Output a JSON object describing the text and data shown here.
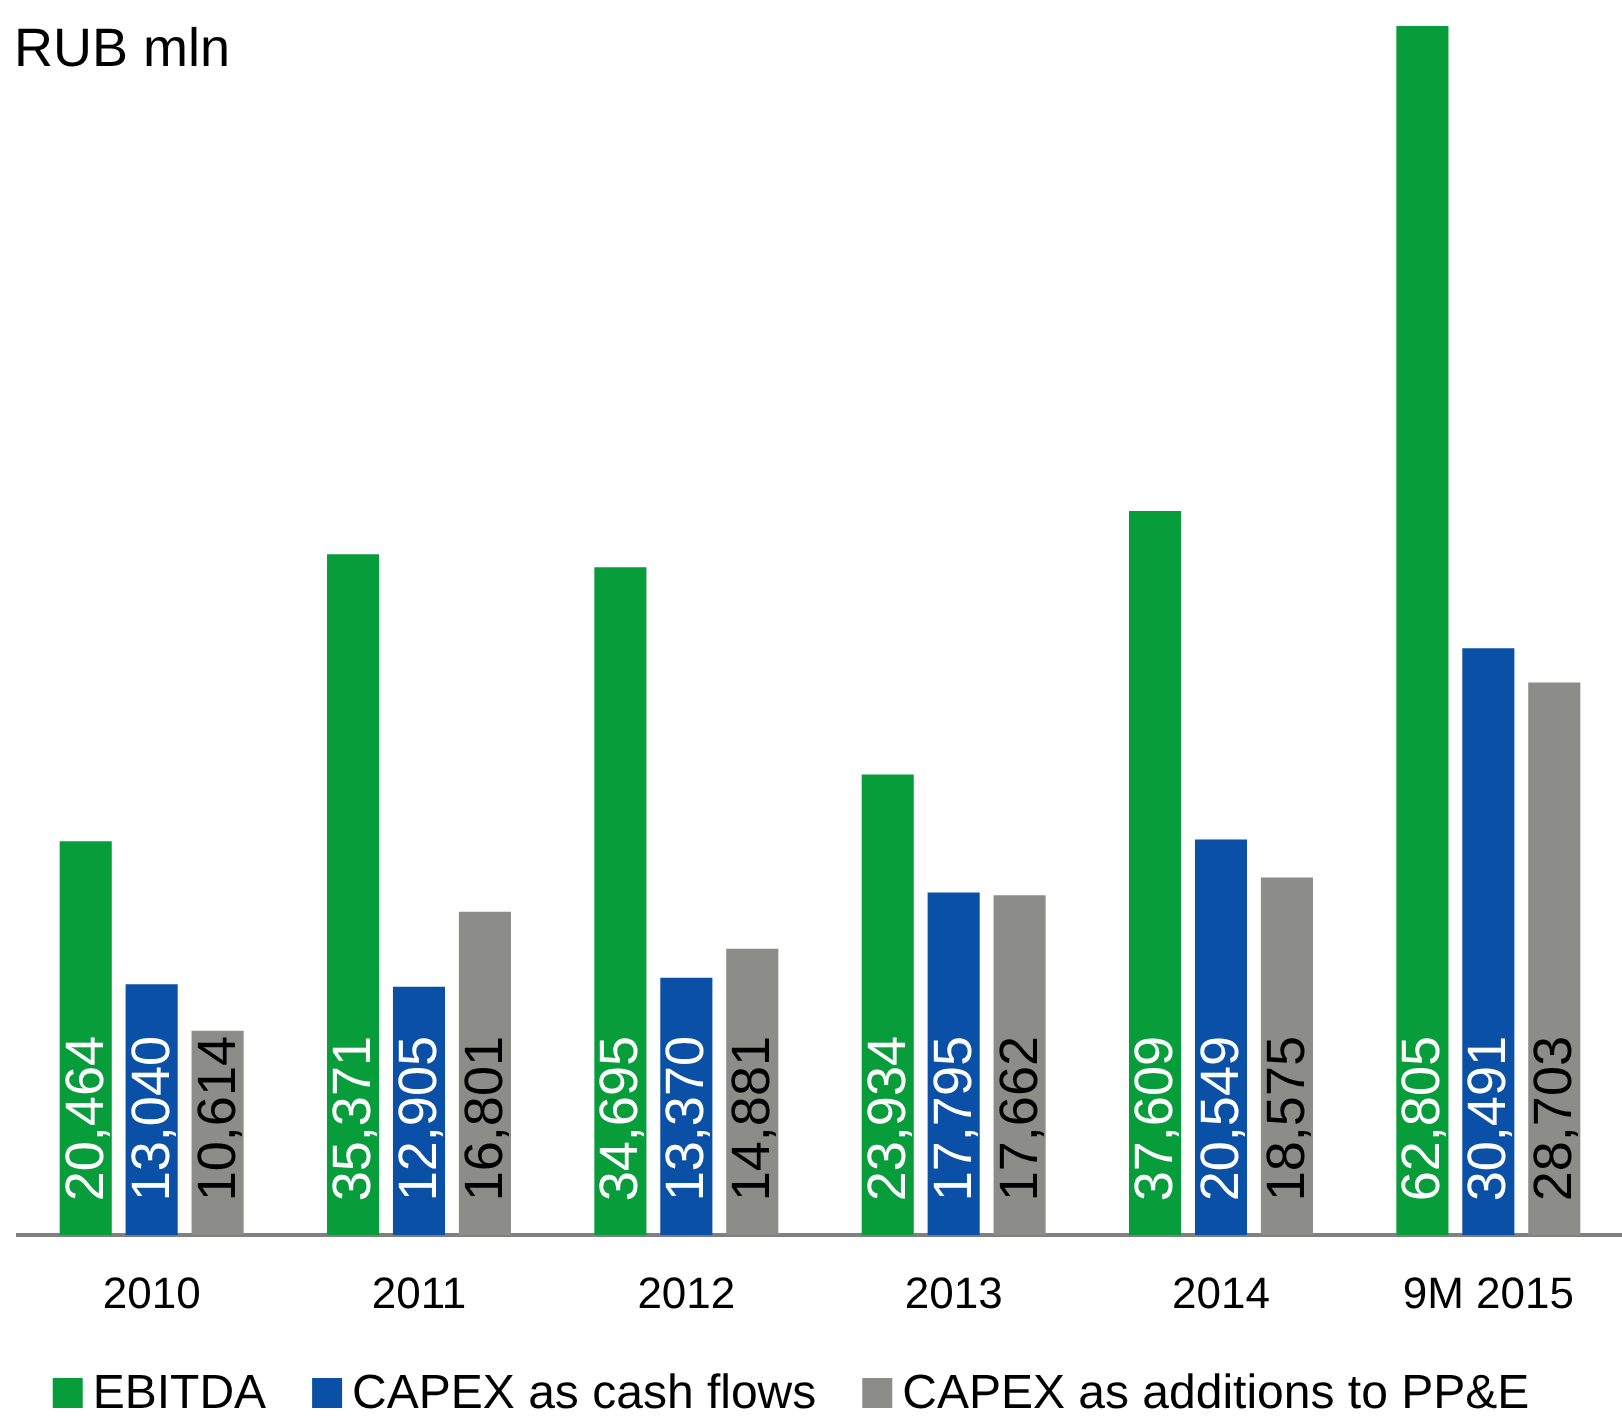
{
  "chart_data": {
    "type": "bar",
    "ylabel": "RUB mln",
    "categories": [
      "2010",
      "2011",
      "2012",
      "2013",
      "2014",
      "9M 2015"
    ],
    "series": [
      {
        "name": "EBITDA",
        "color": "#079d3a",
        "values": [
          20464,
          35371,
          34695,
          23934,
          37609,
          62805
        ],
        "value_labels": [
          "20,464",
          "35,371",
          "34,695",
          "23,934",
          "37,609",
          "62,805"
        ]
      },
      {
        "name": "CAPEX as cash flows",
        "color": "#0a50a6",
        "values": [
          13040,
          12905,
          13370,
          17795,
          20549,
          30491
        ],
        "value_labels": [
          "13,040",
          "12,905",
          "13,370",
          "17,795",
          "20,549",
          "30,491"
        ]
      },
      {
        "name": "CAPEX as additions to PP&E",
        "color": "#8c8d88",
        "values": [
          10614,
          16801,
          14881,
          17662,
          18575,
          28703
        ],
        "value_labels": [
          "10,614",
          "16,801",
          "14,881",
          "17,662",
          "18,575",
          "28,703"
        ]
      }
    ],
    "legend": "bottom",
    "tick_labels": "x"
  }
}
